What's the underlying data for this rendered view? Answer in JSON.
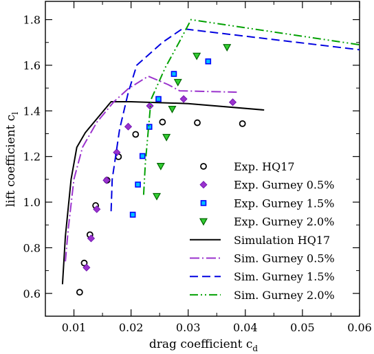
{
  "chart_data": {
    "type": "scatter",
    "xlabel": "drag coefficient c",
    "xlabel_sub": "d",
    "ylabel": "lift coefficient c",
    "ylabel_sub": "l",
    "xlim": [
      0.005,
      0.06
    ],
    "ylim": [
      0.5,
      1.88
    ],
    "x_ticks": [
      0.01,
      0.02,
      0.03,
      0.04,
      0.05,
      0.06
    ],
    "x_tick_labels": [
      "0.01",
      "0.02",
      "0.03",
      "0.04",
      "0.05",
      "0.06"
    ],
    "y_ticks": [
      0.6,
      0.8,
      1.0,
      1.2,
      1.4,
      1.6,
      1.8
    ],
    "y_tick_labels": [
      "0.6",
      "0.8",
      "1.0",
      "1.2",
      "1.4",
      "1.6",
      "1.8"
    ],
    "grid": false,
    "legend_position": "bottom-right",
    "series": [
      {
        "name": "Exp. HQ17",
        "kind": "scatter",
        "marker": "circle",
        "color": "#000000",
        "points": [
          [
            0.011,
            0.605
          ],
          [
            0.0118,
            0.733
          ],
          [
            0.0128,
            0.857
          ],
          [
            0.0138,
            0.985
          ],
          [
            0.0158,
            1.096
          ],
          [
            0.0178,
            1.199
          ],
          [
            0.0208,
            1.297
          ],
          [
            0.0255,
            1.351
          ],
          [
            0.0316,
            1.348
          ],
          [
            0.0395,
            1.344
          ]
        ]
      },
      {
        "name": "Exp. Gurney 0.5%",
        "kind": "scatter",
        "marker": "diamond",
        "color": "#9a32cd",
        "points": [
          [
            0.0122,
            0.713
          ],
          [
            0.013,
            0.841
          ],
          [
            0.014,
            0.969
          ],
          [
            0.0157,
            1.096
          ],
          [
            0.0175,
            1.218
          ],
          [
            0.0195,
            1.331
          ],
          [
            0.0233,
            1.422
          ],
          [
            0.0292,
            1.452
          ],
          [
            0.0378,
            1.438
          ]
        ]
      },
      {
        "name": "Exp. Gurney 1.5%",
        "kind": "scatter",
        "marker": "square",
        "color": "#1e90ff",
        "points": [
          [
            0.0203,
            0.945
          ],
          [
            0.0212,
            1.077
          ],
          [
            0.022,
            1.202
          ],
          [
            0.0232,
            1.33
          ],
          [
            0.0248,
            1.452
          ],
          [
            0.0275,
            1.562
          ],
          [
            0.0335,
            1.617
          ]
        ]
      },
      {
        "name": "Exp. Gurney 2.0%",
        "kind": "scatter",
        "marker": "triangle-down",
        "color": "#00a000",
        "points": [
          [
            0.0245,
            1.026
          ],
          [
            0.0252,
            1.158
          ],
          [
            0.0262,
            1.285
          ],
          [
            0.0272,
            1.408
          ],
          [
            0.0282,
            1.526
          ],
          [
            0.0315,
            1.641
          ],
          [
            0.0368,
            1.679
          ]
        ]
      },
      {
        "name": "Simulation HQ17",
        "kind": "line",
        "dash": "solid",
        "color": "#000000",
        "points": [
          [
            0.008,
            0.64
          ],
          [
            0.0085,
            0.85
          ],
          [
            0.0095,
            1.1
          ],
          [
            0.0105,
            1.24
          ],
          [
            0.012,
            1.305
          ],
          [
            0.0165,
            1.44
          ],
          [
            0.02,
            1.44
          ],
          [
            0.03,
            1.432
          ],
          [
            0.0433,
            1.404
          ]
        ]
      },
      {
        "name": "Sim. Gurney 0.5%",
        "kind": "line",
        "dash": "dash-dot",
        "color": "#9a32cd",
        "points": [
          [
            0.0085,
            0.74
          ],
          [
            0.009,
            0.88
          ],
          [
            0.01,
            1.1
          ],
          [
            0.0115,
            1.24
          ],
          [
            0.014,
            1.35
          ],
          [
            0.017,
            1.44
          ],
          [
            0.0195,
            1.497
          ],
          [
            0.023,
            1.552
          ],
          [
            0.0265,
            1.515
          ],
          [
            0.0285,
            1.488
          ],
          [
            0.0385,
            1.482
          ]
        ]
      },
      {
        "name": "Sim. Gurney 1.5%",
        "kind": "line",
        "dash": "dash",
        "color": "#0000e0",
        "points": [
          [
            0.0165,
            0.96
          ],
          [
            0.0167,
            1.1
          ],
          [
            0.018,
            1.32
          ],
          [
            0.0195,
            1.48
          ],
          [
            0.021,
            1.6
          ],
          [
            0.0255,
            1.7
          ],
          [
            0.029,
            1.76
          ],
          [
            0.06,
            1.668
          ]
        ]
      },
      {
        "name": "Sim. Gurney 2.0%",
        "kind": "line",
        "dash": "dash-dot-dot",
        "color": "#00a000",
        "points": [
          [
            0.0222,
            1.032
          ],
          [
            0.0225,
            1.17
          ],
          [
            0.0235,
            1.45
          ],
          [
            0.026,
            1.59
          ],
          [
            0.0285,
            1.705
          ],
          [
            0.0305,
            1.8
          ],
          [
            0.06,
            1.69
          ]
        ]
      }
    ]
  }
}
